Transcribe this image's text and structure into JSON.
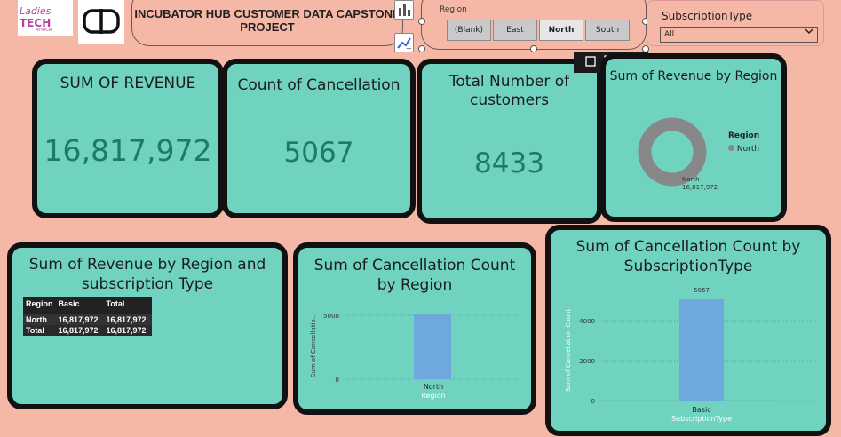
{
  "header": {
    "logo_lit": {
      "line1": "Ladies",
      "line2": "TECH",
      "line3": "AFRICA"
    },
    "title": "INCUBATOR HUB CUSTOMER DATA CAPSTONE PROJECT"
  },
  "region_slicer": {
    "label": "Region",
    "options": [
      {
        "label": "(Blank)",
        "selected": false
      },
      {
        "label": "East",
        "selected": false
      },
      {
        "label": "North",
        "selected": true
      },
      {
        "label": "South",
        "selected": false
      }
    ]
  },
  "subscription_slicer": {
    "label": "SubscriptionType",
    "value": "All"
  },
  "kpis": {
    "revenue": {
      "title": "SUM OF REVENUE",
      "value": "16,817,972"
    },
    "cancellations": {
      "title": "Count of Cancellation",
      "value": "5067"
    },
    "customers": {
      "title_line1": "Total Number of",
      "title_line2": "customers",
      "value": "8433"
    }
  },
  "donut": {
    "title": "Sum of Revenue by Region",
    "legend_title": "Region",
    "legend_item": "North",
    "label_name": "North",
    "label_value": "16,817,972",
    "color": "#888888"
  },
  "matrix": {
    "title_line1": "Sum of Revenue by Region and",
    "title_line2": "subscription Type",
    "headers": [
      "Region",
      "Basic",
      "Total"
    ],
    "rows": [
      [
        "North",
        "16,817,972",
        "16,817,972"
      ],
      [
        "Total",
        "16,817,972",
        "16,817,972"
      ]
    ]
  },
  "chart_region": {
    "title_line1": "Sum of Cancellation Count",
    "title_line2": "by Region",
    "ylabel": "Sum of Cancellatio...",
    "xlabel": "Region",
    "ticks": [
      "5000",
      "0"
    ],
    "category": "North"
  },
  "chart_sub": {
    "title_line1": "Sum of Cancellation Count by",
    "title_line2": "SubscriptionType",
    "ylabel": "Sum of Cancellation Count",
    "xlabel": "SubscriptionType",
    "ticks": [
      "4000",
      "2000",
      "0"
    ],
    "category": "Basic",
    "data_label": "5067"
  },
  "chart_data": [
    {
      "type": "bar",
      "title": "Sum of Cancellation Count by Region",
      "xlabel": "Region",
      "ylabel": "Sum of Cancellatio...",
      "categories": [
        "North"
      ],
      "values": [
        5067
      ],
      "ylim": [
        0,
        5067
      ],
      "color": "#6fa8dc"
    },
    {
      "type": "bar",
      "title": "Sum of Cancellation Count by SubscriptionType",
      "xlabel": "SubscriptionType",
      "ylabel": "Sum of Cancellation Count",
      "categories": [
        "Basic"
      ],
      "values": [
        5067
      ],
      "ylim": [
        0,
        5067
      ],
      "color": "#6fa8dc"
    }
  ]
}
